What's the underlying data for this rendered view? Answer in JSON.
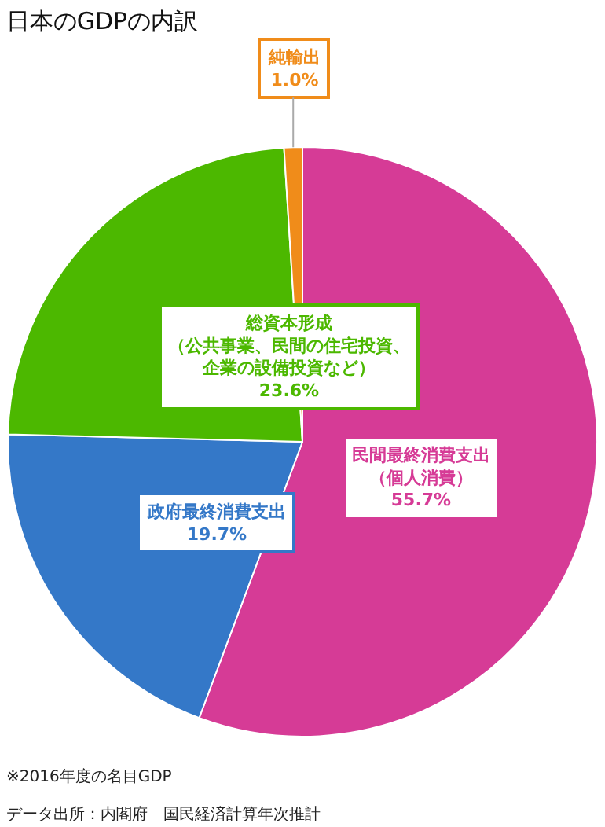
{
  "chart_data": {
    "type": "pie",
    "title": "日本のGDPの内訳",
    "categories": [
      "民間最終消費支出（個人消費）",
      "政府最終消費支出",
      "総資本形成（公共事業、民間の住宅投資、企業の設備投資など）",
      "純輸出"
    ],
    "values": [
      55.7,
      19.7,
      23.6,
      1.0
    ],
    "colors": [
      "#d63b96",
      "#3478c8",
      "#4cb800",
      "#f08c1a"
    ],
    "value_labels": [
      "55.7%",
      "19.7%",
      "23.6%",
      "1.0%"
    ],
    "legend": false,
    "annotations": [
      "※2016年度の名目GDP",
      "データ出所：内閣府　国民経済計算年次推計"
    ]
  }
}
